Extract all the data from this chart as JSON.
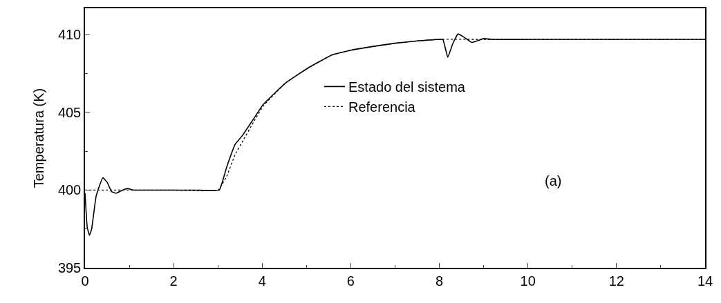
{
  "chart_data": {
    "type": "line",
    "ylabel": "Temperatura (K)",
    "xlim": [
      0,
      14
    ],
    "xticks": [
      0,
      2,
      4,
      6,
      8,
      10,
      12,
      14
    ],
    "ylim": [
      395,
      411.7
    ],
    "yticks": [
      395,
      400,
      405,
      410
    ],
    "legend": "center",
    "marker": "none",
    "annotations": [
      "(a)"
    ],
    "series": [
      {
        "name": "Estado del sistema",
        "color": "#000000",
        "line_style": "solid",
        "x": [
          0,
          0.05,
          0.1,
          0.15,
          0.25,
          0.4,
          0.5,
          0.6,
          0.7,
          0.85,
          0.96,
          1.1,
          1.5,
          2.5,
          3.03,
          3.2,
          3.39,
          3.55,
          3.81,
          4.02,
          4.53,
          5.06,
          5.58,
          6.0,
          6.52,
          7.0,
          7.5,
          8.0,
          8.08,
          8.19,
          8.3,
          8.42,
          8.55,
          8.73,
          8.85,
          9.0,
          9.2,
          10,
          11,
          12,
          13,
          14
        ],
        "values": [
          399.8,
          397.6,
          397.1,
          397.5,
          399.6,
          400.8,
          400.5,
          399.9,
          399.8,
          400.0,
          400.1,
          400.0,
          400.0,
          400.0,
          400.0,
          401.5,
          402.95,
          403.5,
          404.6,
          405.5,
          406.9,
          407.9,
          408.7,
          409.0,
          409.25,
          409.45,
          409.6,
          409.7,
          409.7,
          408.55,
          409.4,
          410.05,
          409.85,
          409.5,
          409.6,
          409.75,
          409.7,
          409.7,
          409.7,
          409.7,
          409.7,
          409.7
        ]
      },
      {
        "name": "Referencia",
        "color": "#000000",
        "line_style": "dotted",
        "x": [
          0,
          1,
          2,
          3.0,
          3.2,
          3.39,
          3.55,
          3.81,
          4.02,
          4.53,
          5.06,
          5.58,
          6.0,
          6.52,
          7.0,
          7.5,
          8.0,
          9,
          10,
          11,
          12,
          13,
          14
        ],
        "values": [
          400.0,
          400.0,
          400.0,
          400.0,
          400.9,
          402.3,
          403.1,
          404.4,
          405.4,
          406.9,
          407.9,
          408.7,
          409.0,
          409.25,
          409.45,
          409.6,
          409.7,
          409.7,
          409.7,
          409.7,
          409.7,
          409.7,
          409.7
        ]
      }
    ]
  }
}
